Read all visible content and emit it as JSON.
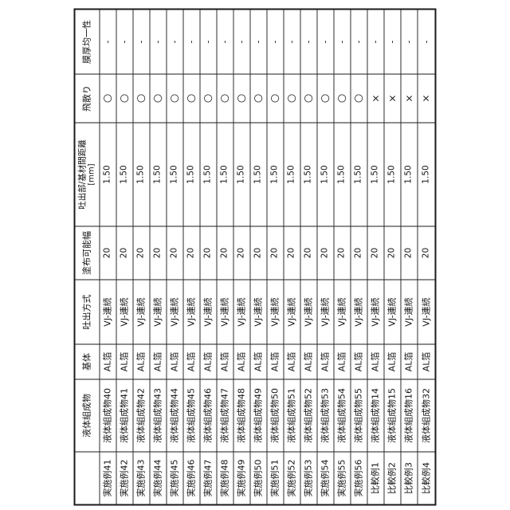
{
  "style": {
    "ink_color": "#1a1a1a",
    "background_color": "#ffffff"
  },
  "table": {
    "orientation": "rotated-90-ccw",
    "headers": {
      "label": "",
      "composition": "液体組成物",
      "substrate": "基体",
      "method": "吐出方式",
      "coat_width": "塗布可能幅",
      "distance_line1": "吐出部/基材間距離",
      "distance_line2": "[mm]",
      "scattering": "飛散り",
      "uniformity": "膜厚均一性"
    },
    "symbols": {
      "pass": "○",
      "fail": "×",
      "not_evaluated": "-"
    },
    "rows": [
      {
        "label": "実施例41",
        "composition": "液体組成物40",
        "substrate": "AL箔",
        "method": "VJ-連続",
        "coat_width": "20",
        "distance": "1.50",
        "scattering": "○",
        "uniformity": "-"
      },
      {
        "label": "実施例42",
        "composition": "液体組成物41",
        "substrate": "AL箔",
        "method": "VJ-連続",
        "coat_width": "20",
        "distance": "1.50",
        "scattering": "○",
        "uniformity": "-"
      },
      {
        "label": "実施例43",
        "composition": "液体組成物42",
        "substrate": "AL箔",
        "method": "VJ-連続",
        "coat_width": "20",
        "distance": "1.50",
        "scattering": "○",
        "uniformity": "-"
      },
      {
        "label": "実施例44",
        "composition": "液体組成物43",
        "substrate": "AL箔",
        "method": "VJ-連続",
        "coat_width": "20",
        "distance": "1.50",
        "scattering": "○",
        "uniformity": "-"
      },
      {
        "label": "実施例45",
        "composition": "液体組成物44",
        "substrate": "AL箔",
        "method": "VJ-連続",
        "coat_width": "20",
        "distance": "1.50",
        "scattering": "○",
        "uniformity": "-"
      },
      {
        "label": "実施例46",
        "composition": "液体組成物45",
        "substrate": "AL箔",
        "method": "VJ-連続",
        "coat_width": "20",
        "distance": "1.50",
        "scattering": "○",
        "uniformity": "-"
      },
      {
        "label": "実施例47",
        "composition": "液体組成物46",
        "substrate": "AL箔",
        "method": "VJ-連続",
        "coat_width": "20",
        "distance": "1.50",
        "scattering": "○",
        "uniformity": "-"
      },
      {
        "label": "実施例48",
        "composition": "液体組成物47",
        "substrate": "AL箔",
        "method": "VJ-連続",
        "coat_width": "20",
        "distance": "1.50",
        "scattering": "○",
        "uniformity": "-"
      },
      {
        "label": "実施例49",
        "composition": "液体組成物48",
        "substrate": "AL箔",
        "method": "VJ-連続",
        "coat_width": "20",
        "distance": "1.50",
        "scattering": "○",
        "uniformity": "-"
      },
      {
        "label": "実施例50",
        "composition": "液体組成物49",
        "substrate": "AL箔",
        "method": "VJ-連続",
        "coat_width": "20",
        "distance": "1.50",
        "scattering": "○",
        "uniformity": "-"
      },
      {
        "label": "実施例51",
        "composition": "液体組成物50",
        "substrate": "AL箔",
        "method": "VJ-連続",
        "coat_width": "20",
        "distance": "1.50",
        "scattering": "○",
        "uniformity": "-"
      },
      {
        "label": "実施例52",
        "composition": "液体組成物51",
        "substrate": "AL箔",
        "method": "VJ-連続",
        "coat_width": "20",
        "distance": "1.50",
        "scattering": "○",
        "uniformity": "-"
      },
      {
        "label": "実施例53",
        "composition": "液体組成物52",
        "substrate": "AL箔",
        "method": "VJ-連続",
        "coat_width": "20",
        "distance": "1.50",
        "scattering": "○",
        "uniformity": "-"
      },
      {
        "label": "実施例54",
        "composition": "液体組成物53",
        "substrate": "AL箔",
        "method": "VJ-連続",
        "coat_width": "20",
        "distance": "1.50",
        "scattering": "○",
        "uniformity": "-"
      },
      {
        "label": "実施例55",
        "composition": "液体組成物54",
        "substrate": "AL箔",
        "method": "VJ-連続",
        "coat_width": "20",
        "distance": "1.50",
        "scattering": "○",
        "uniformity": "-"
      },
      {
        "label": "実施例56",
        "composition": "液体組成物55",
        "substrate": "AL箔",
        "method": "VJ-連続",
        "coat_width": "20",
        "distance": "1.50",
        "scattering": "○",
        "uniformity": "-"
      },
      {
        "label": "比較例1",
        "composition": "液体組成物14",
        "substrate": "AL箔",
        "method": "VJ-連続",
        "coat_width": "20",
        "distance": "1.50",
        "scattering": "×",
        "uniformity": "-"
      },
      {
        "label": "比較例2",
        "composition": "液体組成物15",
        "substrate": "AL箔",
        "method": "VJ-連続",
        "coat_width": "20",
        "distance": "1.50",
        "scattering": "×",
        "uniformity": "-"
      },
      {
        "label": "比較例3",
        "composition": "液体組成物16",
        "substrate": "AL箔",
        "method": "VJ-連続",
        "coat_width": "20",
        "distance": "1.50",
        "scattering": "×",
        "uniformity": "-"
      },
      {
        "label": "比較例4",
        "composition": "液体組成物32",
        "substrate": "AL箔",
        "method": "VJ-連続",
        "coat_width": "20",
        "distance": "1.50",
        "scattering": "×",
        "uniformity": "-"
      }
    ]
  }
}
